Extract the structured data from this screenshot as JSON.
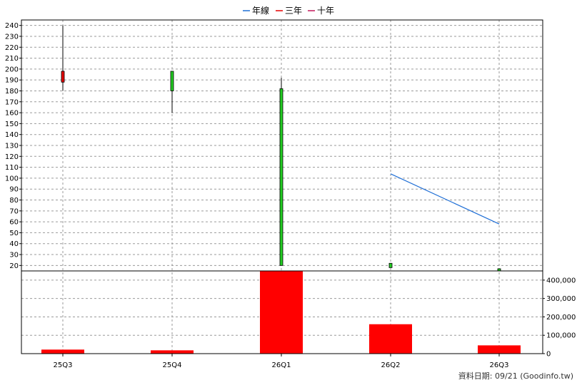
{
  "chart_data": {
    "type": "candlestick+bar",
    "legend": [
      {
        "name": "年線",
        "color": "#1f6fd6"
      },
      {
        "name": "三年",
        "color": "#e60000"
      },
      {
        "name": "十年",
        "color": "#c2185b"
      }
    ],
    "categories": [
      "25Q3",
      "25Q4",
      "26Q1",
      "26Q2",
      "26Q3"
    ],
    "price_axis": {
      "ylim": [
        15,
        245
      ],
      "ticks": [
        20,
        30,
        40,
        50,
        60,
        70,
        80,
        90,
        100,
        110,
        120,
        130,
        140,
        150,
        160,
        170,
        180,
        190,
        200,
        210,
        220,
        230,
        240
      ]
    },
    "candles": [
      {
        "period": "25Q3",
        "open": 198,
        "close": 188,
        "high": 240,
        "low": 180,
        "color": "#e60000"
      },
      {
        "period": "25Q4",
        "open": 180,
        "close": 198,
        "high": 198,
        "low": 160,
        "color": "#22cc22"
      },
      {
        "period": "26Q1",
        "open": 20,
        "close": 182,
        "high": 192,
        "low": 20,
        "color": "#22cc22"
      },
      {
        "period": "26Q2",
        "open": 18,
        "close": 22,
        "high": 22,
        "low": 18,
        "color": "#22cc22"
      },
      {
        "period": "26Q3",
        "open": 15,
        "close": 17,
        "high": 17,
        "low": 15,
        "color": "#22cc22"
      }
    ],
    "moving_average": {
      "name": "年線",
      "color": "#1f6fd6",
      "points": [
        {
          "period": "26Q2",
          "value": 104
        },
        {
          "period": "26Q3",
          "value": 58
        }
      ]
    },
    "volume_axis": {
      "ylim": [
        0,
        450000
      ],
      "ticks": [
        0,
        100000,
        200000,
        300000,
        400000
      ],
      "tick_labels": [
        "0",
        "100,000",
        "200,000",
        "300,000",
        "400,000"
      ]
    },
    "volume": {
      "color": "#ff0000",
      "values": [
        22000,
        18000,
        450000,
        160000,
        45000
      ]
    }
  },
  "footer": {
    "source_text": "資料日期: 09/21  (Goodinfo.tw)"
  }
}
